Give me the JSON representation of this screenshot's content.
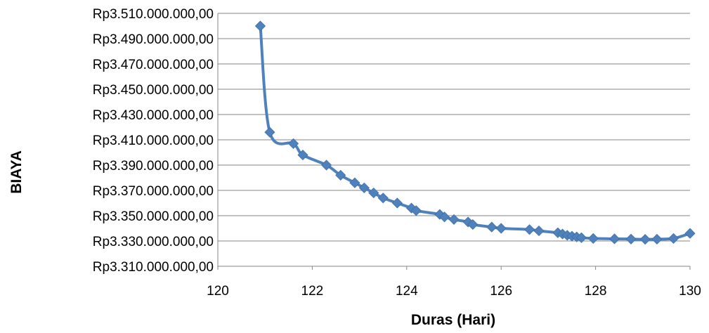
{
  "chart_data": {
    "type": "line",
    "title": "",
    "xlabel": "Duras (Hari)",
    "ylabel": "BIAYA",
    "xlim": [
      120,
      130
    ],
    "ylim": [
      3310000000,
      3510000000
    ],
    "x_ticks": [
      120,
      122,
      124,
      126,
      128,
      130
    ],
    "y_ticks": [
      3310000000,
      3330000000,
      3350000000,
      3370000000,
      3390000000,
      3410000000,
      3430000000,
      3450000000,
      3470000000,
      3490000000,
      3510000000
    ],
    "x_tick_labels": [
      "120",
      "122",
      "124",
      "126",
      "128",
      "130"
    ],
    "y_tick_labels": [
      "Rp3.310.000.000,00",
      "Rp3.330.000.000,00",
      "Rp3.350.000.000,00",
      "Rp3.370.000.000,00",
      "Rp3.390.000.000,00",
      "Rp3.410.000.000,00",
      "Rp3.430.000.000,00",
      "Rp3.450.000.000,00",
      "Rp3.470.000.000,00",
      "Rp3.490.000.000,00",
      "Rp3.510.000.000,00"
    ],
    "grid": "horizontal",
    "legend": "none",
    "marker": "diamond",
    "color": "#4f81bd",
    "series": [
      {
        "name": "",
        "x": [
          120.9,
          121.1,
          121.6,
          121.8,
          122.3,
          122.6,
          122.9,
          123.1,
          123.3,
          123.5,
          123.8,
          124.1,
          124.2,
          124.7,
          124.8,
          125.0,
          125.3,
          125.4,
          125.8,
          126.0,
          126.6,
          126.8,
          127.2,
          127.3,
          127.4,
          127.5,
          127.6,
          127.7,
          127.95,
          128.4,
          128.75,
          129.05,
          129.3,
          129.65,
          130.0
        ],
        "y": [
          3500000000,
          3416000000,
          3407000000,
          3398000000,
          3390000000,
          3382000000,
          3376000000,
          3372000000,
          3368000000,
          3364000000,
          3360000000,
          3356000000,
          3354000000,
          3351000000,
          3349000000,
          3347000000,
          3345000000,
          3343000000,
          3341000000,
          3340000000,
          3339000000,
          3338000000,
          3336500000,
          3335500000,
          3334500000,
          3333800000,
          3333200000,
          3332600000,
          3332000000,
          3331700000,
          3331500000,
          3331300000,
          3331400000,
          3332000000,
          3336000000
        ]
      }
    ]
  }
}
